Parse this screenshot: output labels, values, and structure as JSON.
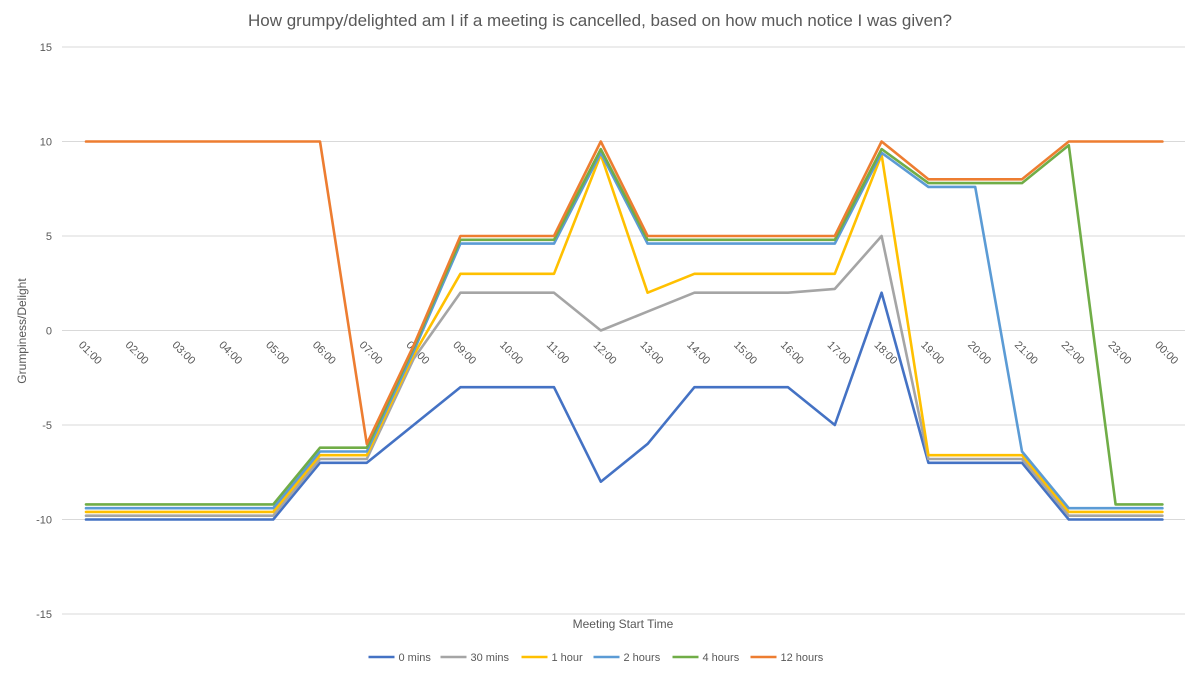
{
  "chart_data": {
    "type": "line",
    "title": "How grumpy/delighted am I if a meeting is cancelled, based on how much notice I was given?",
    "xlabel": "Meeting Start Time",
    "ylabel": "Grumpiness/Delight",
    "ylim": [
      -15,
      15
    ],
    "yticks": [
      15,
      10,
      5,
      0,
      -5,
      -10,
      -15
    ],
    "grid": true,
    "legend_position": "bottom",
    "categories": [
      "01:00",
      "02:00",
      "03:00",
      "04:00",
      "05:00",
      "06:00",
      "07:00",
      "08:00",
      "09:00",
      "10:00",
      "11:00",
      "12:00",
      "13:00",
      "14:00",
      "15:00",
      "16:00",
      "17:00",
      "18:00",
      "19:00",
      "20:00",
      "21:00",
      "22:00",
      "23:00",
      "00:00"
    ],
    "series": [
      {
        "name": "0 mins",
        "color": "#4472C4",
        "values": [
          -10,
          -10,
          -10,
          -10,
          -10,
          -7,
          -7,
          -5,
          -3,
          -3,
          -3,
          -8,
          -6,
          -3,
          -3,
          -3,
          -5,
          2,
          -7,
          -7,
          -7,
          -10,
          -10,
          -10
        ]
      },
      {
        "name": "30 mins",
        "color": "#A5A5A5",
        "values": [
          -9.8,
          -9.8,
          -9.8,
          -9.8,
          -9.8,
          -6.8,
          -6.8,
          -1.5,
          2,
          2,
          2,
          0,
          1,
          2,
          2,
          2,
          2.2,
          5,
          -6.8,
          -6.8,
          -6.8,
          -9.8,
          -9.8,
          -9.8
        ]
      },
      {
        "name": "1 hour",
        "color": "#FFC000",
        "values": [
          -9.6,
          -9.6,
          -9.6,
          -9.6,
          -9.6,
          -6.6,
          -6.6,
          -1.3,
          3,
          3,
          3,
          9.3,
          2,
          3,
          3,
          3,
          3,
          9.3,
          -6.6,
          -6.6,
          -6.6,
          -9.6,
          -9.6,
          -9.6
        ]
      },
      {
        "name": "2 hours",
        "color": "#5B9BD5",
        "values": [
          -9.4,
          -9.4,
          -9.4,
          -9.4,
          -9.4,
          -6.4,
          -6.4,
          -1.1,
          4.6,
          4.6,
          4.6,
          9.4,
          4.6,
          4.6,
          4.6,
          4.6,
          4.6,
          9.4,
          7.6,
          7.6,
          -6.4,
          -9.4,
          -9.4,
          -9.4
        ]
      },
      {
        "name": "4 hours",
        "color": "#70AD47",
        "values": [
          -9.2,
          -9.2,
          -9.2,
          -9.2,
          -9.2,
          -6.2,
          -6.2,
          -0.9,
          4.8,
          4.8,
          4.8,
          9.6,
          4.8,
          4.8,
          4.8,
          4.8,
          4.8,
          9.6,
          7.8,
          7.8,
          7.8,
          9.8,
          -9.2,
          -9.2
        ]
      },
      {
        "name": "12 hours",
        "color": "#ED7D31",
        "values": [
          10,
          10,
          10,
          10,
          10,
          10,
          -6,
          -0.8,
          5,
          5,
          5,
          10,
          5,
          5,
          5,
          5,
          5,
          10,
          8,
          8,
          8,
          10,
          10,
          10
        ]
      }
    ]
  }
}
